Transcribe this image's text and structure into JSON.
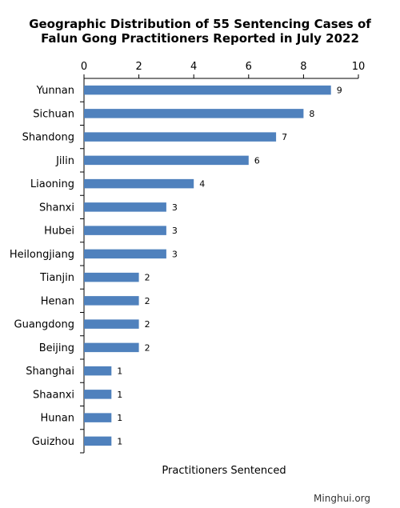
{
  "chart_data": {
    "type": "bar",
    "orientation": "horizontal",
    "title_line1": "Geographic Distribution of 55 Sentencing Cases of",
    "title_line2": "Falun Gong Practitioners Reported in July 2022",
    "xlabel": "Practitioners Sentenced",
    "ylabel": "",
    "xlim": [
      0,
      10
    ],
    "xticks": [
      0,
      2,
      4,
      6,
      8,
      10
    ],
    "axis_position": "top",
    "grid": false,
    "bar_color": "#4f81bd",
    "categories": [
      "Yunnan",
      "Sichuan",
      "Shandong",
      "Jilin",
      "Liaoning",
      "Shanxi",
      "Hubei",
      "Heilongjiang",
      "Tianjin",
      "Henan",
      "Guangdong",
      "Beijing",
      "Shanghai",
      "Shaanxi",
      "Hunan",
      "Guizhou"
    ],
    "values": [
      9,
      8,
      7,
      6,
      4,
      3,
      3,
      3,
      2,
      2,
      2,
      2,
      1,
      1,
      1,
      1
    ]
  },
  "source": "Minghui.org"
}
